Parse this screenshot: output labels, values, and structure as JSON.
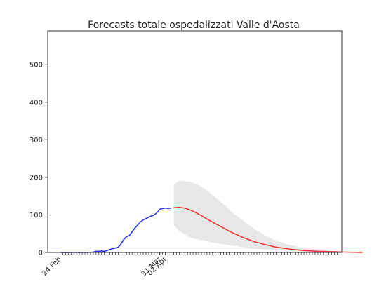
{
  "chart_data": {
    "type": "line",
    "title": "Forecasts totale ospedalizzati Valle d'Aosta",
    "xlabel": "",
    "ylabel": "",
    "ylim": [
      0,
      590
    ],
    "yticks": [
      0,
      100,
      200,
      300,
      400,
      500
    ],
    "x_start_date": "2020-02-24",
    "x_tick_labels": [
      {
        "date": "2020-02-24",
        "label": "24 Feb"
      },
      {
        "date": "2020-03-31",
        "label": "31 Mar"
      },
      {
        "date": "2020-04-02",
        "label": "02 Apr"
      }
    ],
    "series": [
      {
        "color": "#1f2fd6",
        "points": [
          [
            "2020-02-24",
            0
          ],
          [
            "2020-02-26",
            0
          ],
          [
            "2020-02-28",
            0
          ],
          [
            "2020-03-01",
            0
          ],
          [
            "2020-03-03",
            0
          ],
          [
            "2020-03-05",
            0
          ],
          [
            "2020-03-07",
            1
          ],
          [
            "2020-03-08",
            3
          ],
          [
            "2020-03-09",
            3
          ],
          [
            "2020-03-10",
            4
          ],
          [
            "2020-03-11",
            3
          ],
          [
            "2020-03-12",
            5
          ],
          [
            "2020-03-13",
            8
          ],
          [
            "2020-03-14",
            10
          ],
          [
            "2020-03-15",
            12
          ],
          [
            "2020-03-16",
            14
          ],
          [
            "2020-03-17",
            22
          ],
          [
            "2020-03-18",
            35
          ],
          [
            "2020-03-19",
            42
          ],
          [
            "2020-03-20",
            45
          ],
          [
            "2020-03-21",
            55
          ],
          [
            "2020-03-22",
            65
          ],
          [
            "2020-03-23",
            73
          ],
          [
            "2020-03-24",
            81
          ],
          [
            "2020-03-25",
            87
          ],
          [
            "2020-03-26",
            90
          ],
          [
            "2020-03-27",
            94
          ],
          [
            "2020-03-28",
            97
          ],
          [
            "2020-03-29",
            100
          ],
          [
            "2020-03-30",
            106
          ],
          [
            "2020-03-31",
            115
          ],
          [
            "2020-04-01",
            117
          ],
          [
            "2020-04-02",
            118
          ],
          [
            "2020-04-03",
            117
          ],
          [
            "2020-04-04",
            118
          ]
        ]
      },
      {
        "color": "#ee3333",
        "points": [
          [
            "2020-04-05",
            119
          ],
          [
            "2020-04-07",
            120
          ],
          [
            "2020-04-09",
            118
          ],
          [
            "2020-04-11",
            113
          ],
          [
            "2020-04-13",
            106
          ],
          [
            "2020-04-15",
            98
          ],
          [
            "2020-04-17",
            89
          ],
          [
            "2020-04-20",
            77
          ],
          [
            "2020-04-23",
            65
          ],
          [
            "2020-04-26",
            53
          ],
          [
            "2020-04-30",
            40
          ],
          [
            "2020-05-04",
            29
          ],
          [
            "2020-05-08",
            21
          ],
          [
            "2020-05-12",
            14
          ],
          [
            "2020-05-17",
            9
          ],
          [
            "2020-05-22",
            5
          ],
          [
            "2020-05-27",
            3
          ],
          [
            "2020-06-01",
            2
          ],
          [
            "2020-06-06",
            1
          ],
          [
            "2020-06-12",
            0
          ]
        ]
      }
    ],
    "band": {
      "color": "#e8e8e8",
      "points": [
        [
          "2020-04-05",
          180,
          72
        ],
        [
          "2020-04-07",
          190,
          57
        ],
        [
          "2020-04-09",
          190,
          48
        ],
        [
          "2020-04-11",
          188,
          40
        ],
        [
          "2020-04-13",
          183,
          36
        ],
        [
          "2020-04-15",
          175,
          33
        ],
        [
          "2020-04-17",
          165,
          30
        ],
        [
          "2020-04-20",
          147,
          25
        ],
        [
          "2020-04-23",
          128,
          22
        ],
        [
          "2020-04-26",
          108,
          18
        ],
        [
          "2020-04-30",
          85,
          14
        ],
        [
          "2020-05-04",
          63,
          10
        ],
        [
          "2020-05-08",
          45,
          7
        ],
        [
          "2020-05-12",
          31,
          5
        ],
        [
          "2020-05-17",
          20,
          3
        ],
        [
          "2020-05-22",
          12,
          2
        ],
        [
          "2020-05-27",
          7,
          1
        ],
        [
          "2020-06-01",
          4,
          0
        ],
        [
          "2020-06-06",
          2,
          0
        ],
        [
          "2020-06-12",
          1,
          0
        ]
      ]
    }
  }
}
